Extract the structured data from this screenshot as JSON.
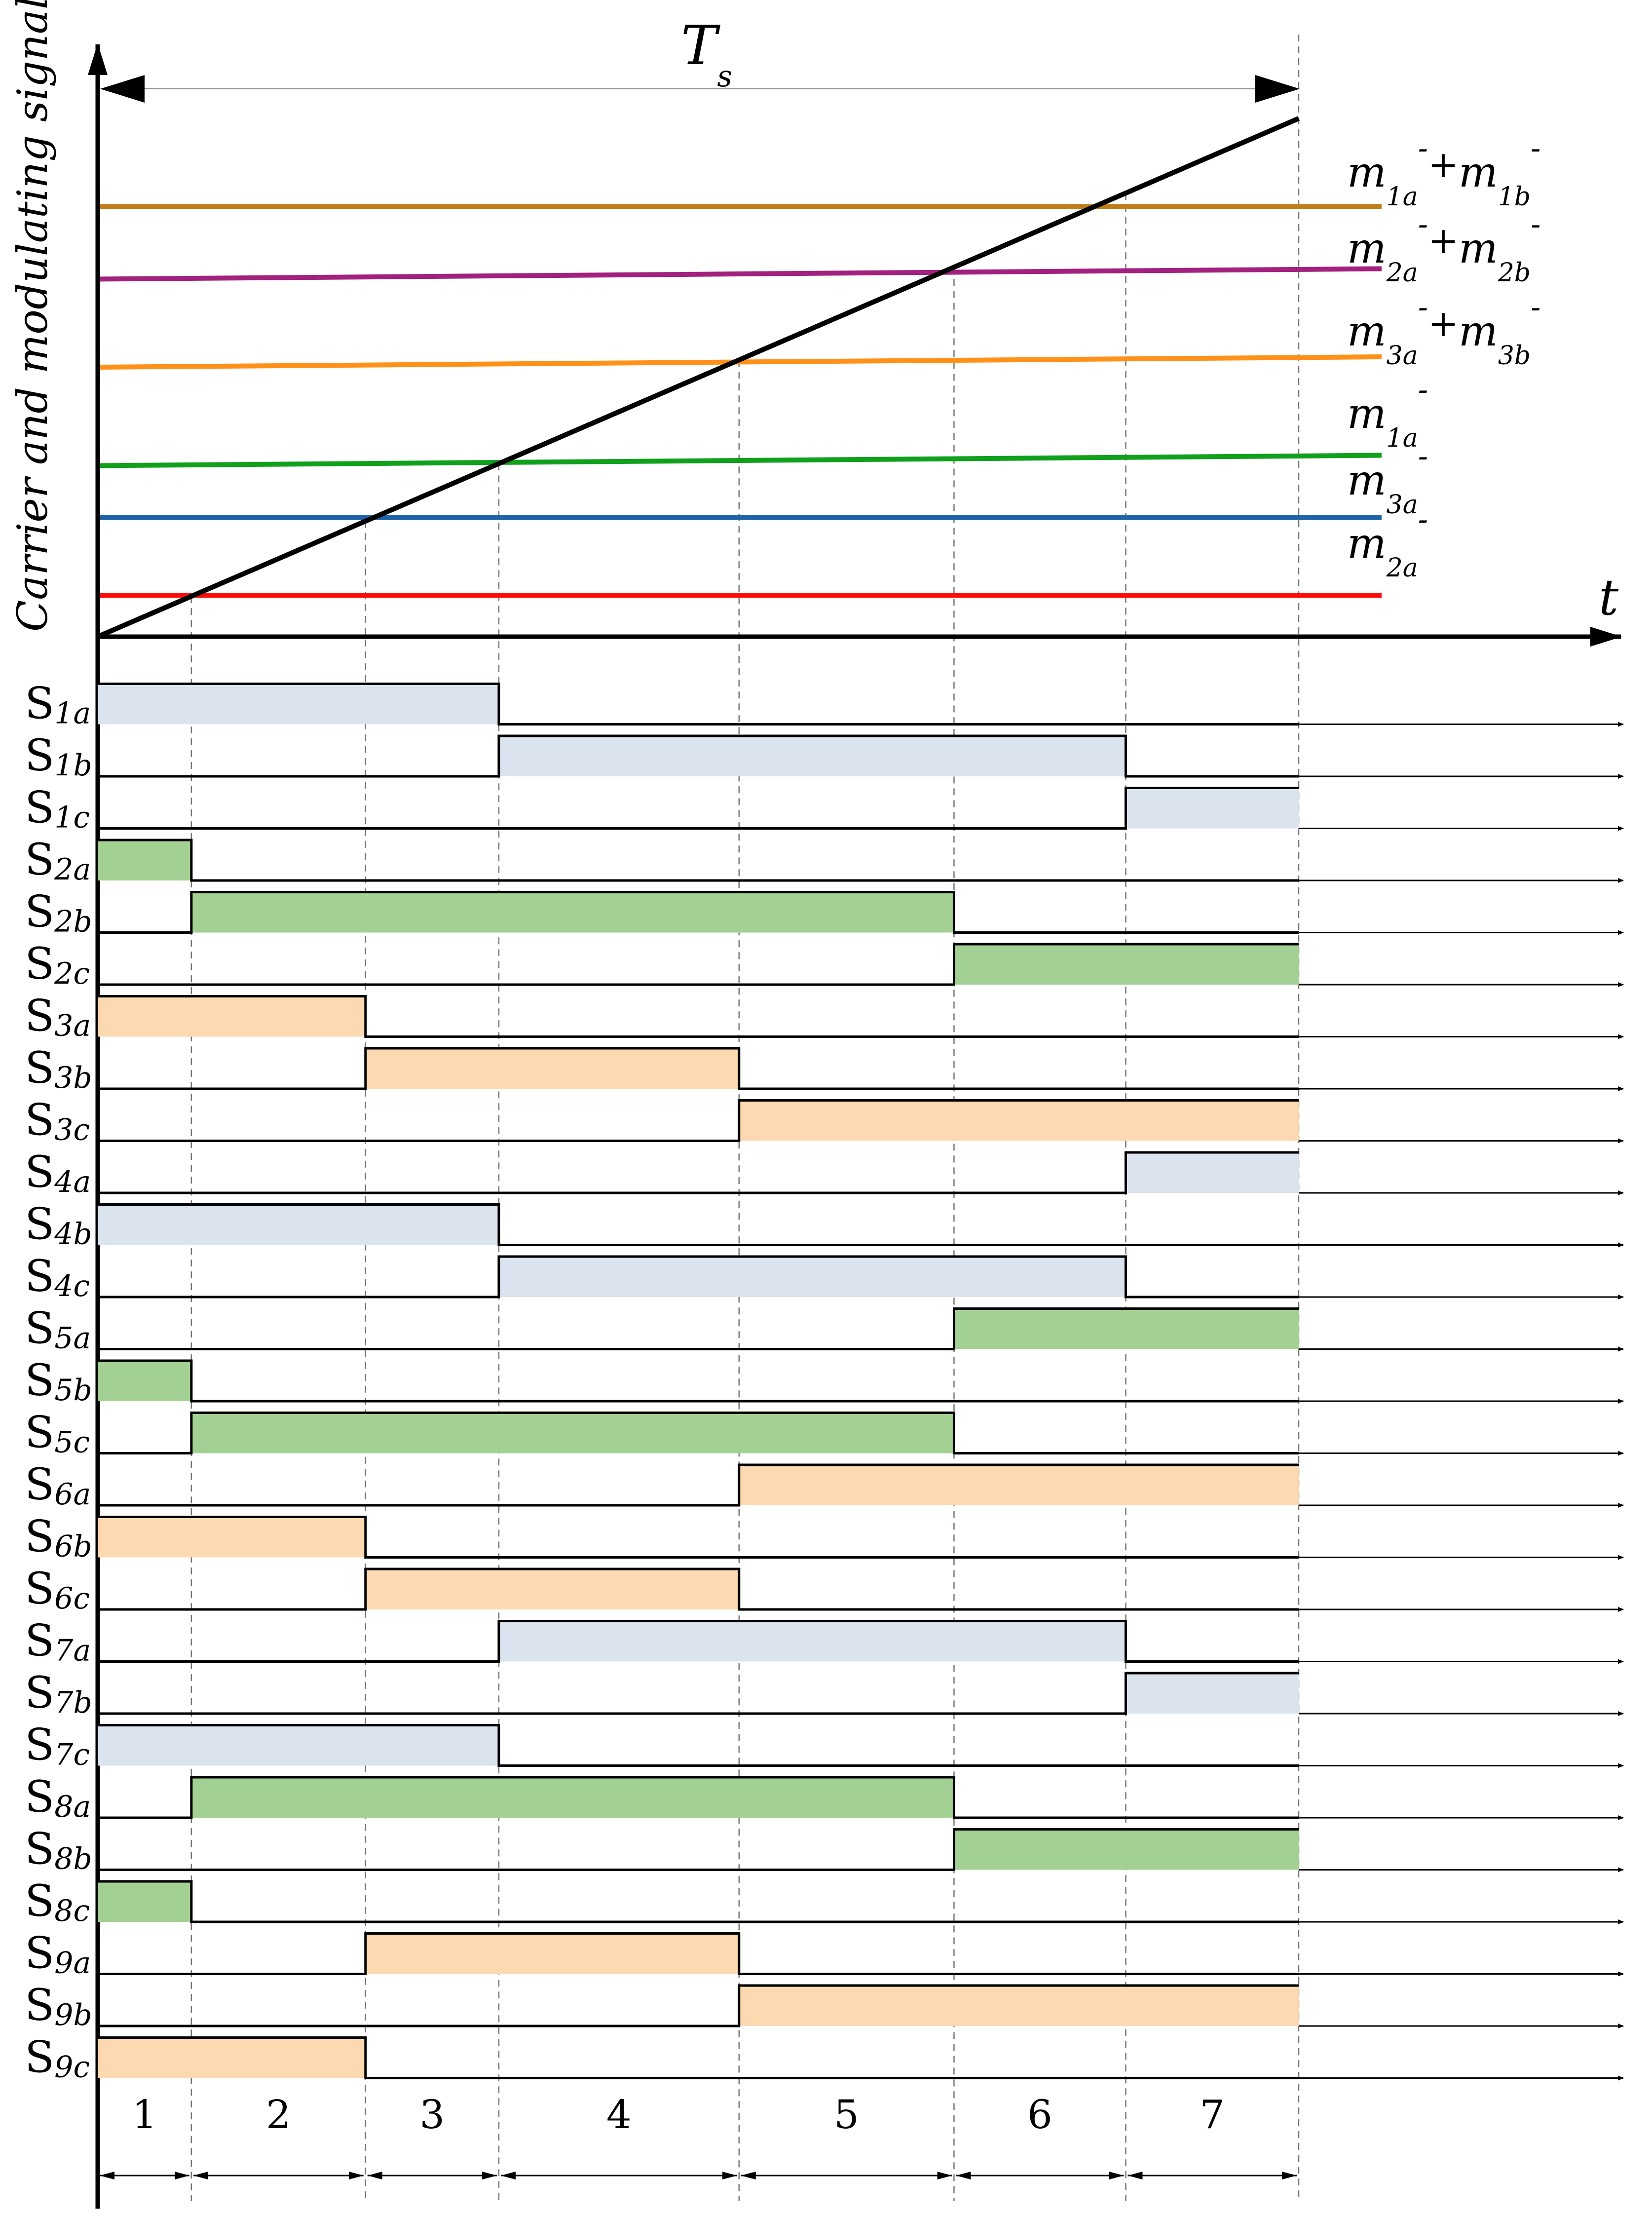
{
  "axis": {
    "y_label": "Carrier and modulating signals",
    "x_label": "t",
    "period_label": "T",
    "period_label_sub": "s"
  },
  "colors": {
    "blue_light": "#dbe4ee",
    "green": "#a3d193",
    "orange_light": "#fcd9b0",
    "line_brown": "#c07d17",
    "line_purple": "#a2207e",
    "line_orange": "#ff9018",
    "line_green": "#10a01c",
    "line_blue": "#1e62a8",
    "line_red": "#ff0a0a",
    "carrier": "#000000"
  },
  "modulating_signals": [
    {
      "id": "m1a_plus_m1b",
      "level": 0.83,
      "level_end": 0.83,
      "color": "#c07d17",
      "label_m1": "m",
      "label_sub1": "1a",
      "label_plus": "+",
      "label_m2": "m",
      "label_sub2": "1b",
      "label_sup": "-"
    },
    {
      "id": "m2a_plus_m2b",
      "level": 0.69,
      "level_end": 0.71,
      "color": "#a2207e",
      "label_m1": "m",
      "label_sub1": "2a",
      "label_plus": "+",
      "label_m2": "m",
      "label_sub2": "2b",
      "label_sup": "-"
    },
    {
      "id": "m3a_plus_m3b",
      "level": 0.52,
      "level_end": 0.54,
      "color": "#ff9018",
      "label_m1": "m",
      "label_sub1": "3a",
      "label_plus": "+",
      "label_m2": "m",
      "label_sub2": "3b",
      "label_sup": "-"
    },
    {
      "id": "m1a",
      "level": 0.33,
      "level_end": 0.35,
      "color": "#10a01c",
      "label_m1": "m",
      "label_sub1": "1a",
      "label_sup": "-"
    },
    {
      "id": "m3a",
      "level": 0.23,
      "level_end": 0.23,
      "color": "#1e62a8",
      "label_m1": "m",
      "label_sub1": "3a",
      "label_sup": "-"
    },
    {
      "id": "m2a",
      "level": 0.08,
      "level_end": 0.08,
      "color": "#ff0a0a",
      "label_m1": "m",
      "label_sub1": "2a",
      "label_sup": "-"
    }
  ],
  "switch_times": [
    0.078,
    0.223,
    0.334,
    0.534,
    0.713,
    0.856
  ],
  "intervals": [
    "1",
    "2",
    "3",
    "4",
    "5",
    "6",
    "7"
  ],
  "switches": [
    {
      "main": "S",
      "sub": "1a",
      "on": [
        0,
        0.334
      ],
      "color": "#dbe4ee"
    },
    {
      "main": "S",
      "sub": "1b",
      "on": [
        0.334,
        0.856
      ],
      "color": "#dbe4ee"
    },
    {
      "main": "S",
      "sub": "1c",
      "on": [
        0.856,
        1
      ],
      "color": "#dbe4ee"
    },
    {
      "main": "S",
      "sub": "2a",
      "on": [
        0,
        0.078
      ],
      "color": "#a3d193"
    },
    {
      "main": "S",
      "sub": "2b",
      "on": [
        0.078,
        0.713
      ],
      "color": "#a3d193"
    },
    {
      "main": "S",
      "sub": "2c",
      "on": [
        0.713,
        1
      ],
      "color": "#a3d193"
    },
    {
      "main": "S",
      "sub": "3a",
      "on": [
        0,
        0.223
      ],
      "color": "#fcd9b0"
    },
    {
      "main": "S",
      "sub": "3b",
      "on": [
        0.223,
        0.534
      ],
      "color": "#fcd9b0"
    },
    {
      "main": "S",
      "sub": "3c",
      "on": [
        0.534,
        1
      ],
      "color": "#fcd9b0"
    },
    {
      "main": "S",
      "sub": "4a",
      "on": [
        0.856,
        1
      ],
      "color": "#dbe4ee"
    },
    {
      "main": "S",
      "sub": "4b",
      "on": [
        0,
        0.334
      ],
      "color": "#dbe4ee"
    },
    {
      "main": "S",
      "sub": "4c",
      "on": [
        0.334,
        0.856
      ],
      "color": "#dbe4ee"
    },
    {
      "main": "S",
      "sub": "5a",
      "on": [
        0.713,
        1
      ],
      "color": "#a3d193"
    },
    {
      "main": "S",
      "sub": "5b",
      "on": [
        0,
        0.078
      ],
      "color": "#a3d193"
    },
    {
      "main": "S",
      "sub": "5c",
      "on": [
        0.078,
        0.713
      ],
      "color": "#a3d193"
    },
    {
      "main": "S",
      "sub": "6a",
      "on": [
        0.534,
        1
      ],
      "color": "#fcd9b0"
    },
    {
      "main": "S",
      "sub": "6b",
      "on": [
        0,
        0.223
      ],
      "color": "#fcd9b0"
    },
    {
      "main": "S",
      "sub": "6c",
      "on": [
        0.223,
        0.534
      ],
      "color": "#fcd9b0"
    },
    {
      "main": "S",
      "sub": "7a",
      "on": [
        0.334,
        0.856
      ],
      "color": "#dbe4ee"
    },
    {
      "main": "S",
      "sub": "7b",
      "on": [
        0.856,
        1
      ],
      "color": "#dbe4ee"
    },
    {
      "main": "S",
      "sub": "7c",
      "on": [
        0,
        0.334
      ],
      "color": "#dbe4ee"
    },
    {
      "main": "S",
      "sub": "8a",
      "on": [
        0.078,
        0.713
      ],
      "color": "#a3d193"
    },
    {
      "main": "S",
      "sub": "8b",
      "on": [
        0.713,
        1
      ],
      "color": "#a3d193"
    },
    {
      "main": "S",
      "sub": "8c",
      "on": [
        0,
        0.078
      ],
      "color": "#a3d193"
    },
    {
      "main": "S",
      "sub": "9a",
      "on": [
        0.223,
        0.534
      ],
      "color": "#fcd9b0"
    },
    {
      "main": "S",
      "sub": "9b",
      "on": [
        0.534,
        1
      ],
      "color": "#fcd9b0"
    },
    {
      "main": "S",
      "sub": "9c",
      "on": [
        0,
        0.223
      ],
      "color": "#fcd9b0"
    }
  ]
}
